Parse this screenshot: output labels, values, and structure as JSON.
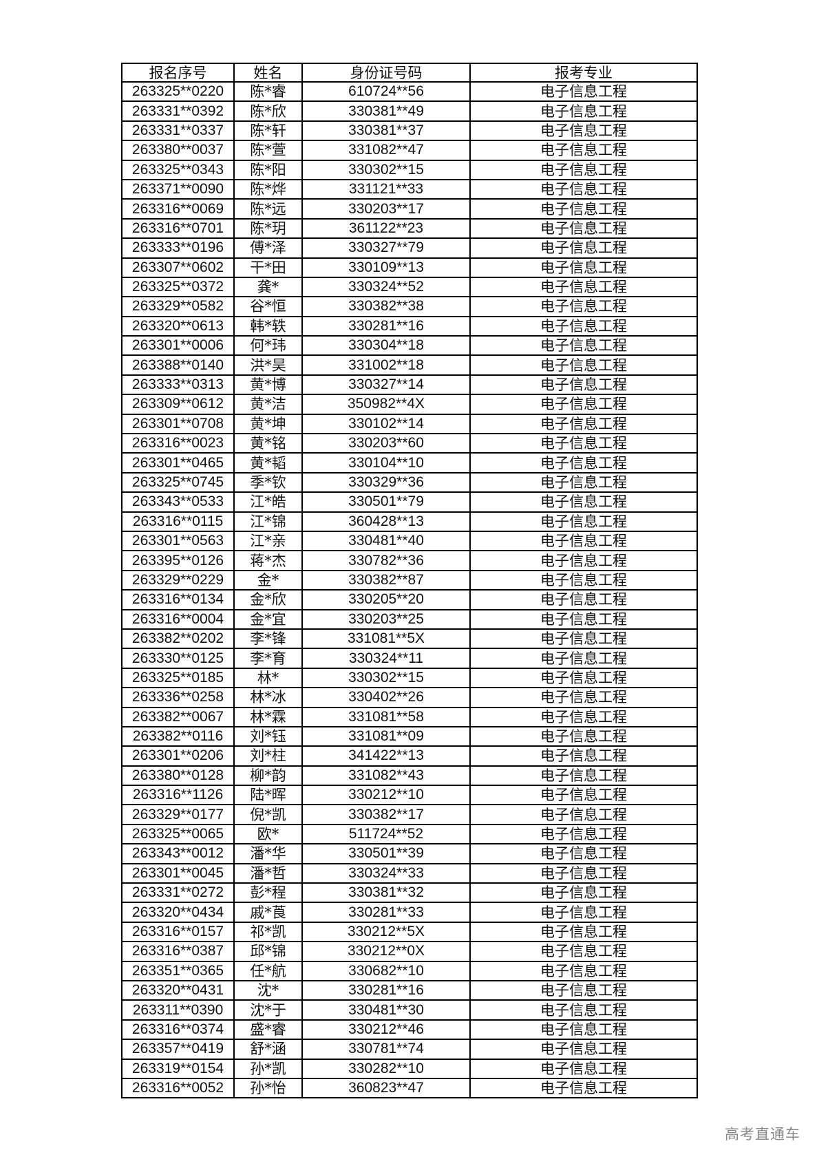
{
  "table": {
    "headers": [
      "报名序号",
      "姓名",
      "身份证号码",
      "报考专业"
    ],
    "rows": [
      [
        "263325**0220",
        "陈*睿",
        "610724**56",
        "电子信息工程"
      ],
      [
        "263331**0392",
        "陈*欣",
        "330381**49",
        "电子信息工程"
      ],
      [
        "263331**0337",
        "陈*轩",
        "330381**37",
        "电子信息工程"
      ],
      [
        "263380**0037",
        "陈*萱",
        "331082**47",
        "电子信息工程"
      ],
      [
        "263325**0343",
        "陈*阳",
        "330302**15",
        "电子信息工程"
      ],
      [
        "263371**0090",
        "陈*烨",
        "331121**33",
        "电子信息工程"
      ],
      [
        "263316**0069",
        "陈*远",
        "330203**17",
        "电子信息工程"
      ],
      [
        "263316**0701",
        "陈*玥",
        "361122**23",
        "电子信息工程"
      ],
      [
        "263333**0196",
        "傅*泽",
        "330327**79",
        "电子信息工程"
      ],
      [
        "263307**0602",
        "干*田",
        "330109**13",
        "电子信息工程"
      ],
      [
        "263325**0372",
        "龚*",
        "330324**52",
        "电子信息工程"
      ],
      [
        "263329**0582",
        "谷*恒",
        "330382**38",
        "电子信息工程"
      ],
      [
        "263320**0613",
        "韩*轶",
        "330281**16",
        "电子信息工程"
      ],
      [
        "263301**0006",
        "何*玮",
        "330304**18",
        "电子信息工程"
      ],
      [
        "263388**0140",
        "洪*昊",
        "331002**18",
        "电子信息工程"
      ],
      [
        "263333**0313",
        "黄*博",
        "330327**14",
        "电子信息工程"
      ],
      [
        "263309**0612",
        "黄*洁",
        "350982**4X",
        "电子信息工程"
      ],
      [
        "263301**0708",
        "黄*坤",
        "330102**14",
        "电子信息工程"
      ],
      [
        "263316**0023",
        "黄*铭",
        "330203**60",
        "电子信息工程"
      ],
      [
        "263301**0465",
        "黄*韬",
        "330104**10",
        "电子信息工程"
      ],
      [
        "263325**0745",
        "季*钦",
        "330329**36",
        "电子信息工程"
      ],
      [
        "263343**0533",
        "江*皓",
        "330501**79",
        "电子信息工程"
      ],
      [
        "263316**0115",
        "江*锦",
        "360428**13",
        "电子信息工程"
      ],
      [
        "263301**0563",
        "江*亲",
        "330481**40",
        "电子信息工程"
      ],
      [
        "263395**0126",
        "蒋*杰",
        "330782**36",
        "电子信息工程"
      ],
      [
        "263329**0229",
        "金*",
        "330382**87",
        "电子信息工程"
      ],
      [
        "263316**0134",
        "金*欣",
        "330205**20",
        "电子信息工程"
      ],
      [
        "263316**0004",
        "金*宜",
        "330203**25",
        "电子信息工程"
      ],
      [
        "263382**0202",
        "李*锋",
        "331081**5X",
        "电子信息工程"
      ],
      [
        "263330**0125",
        "李*育",
        "330324**11",
        "电子信息工程"
      ],
      [
        "263325**0185",
        "林*",
        "330302**15",
        "电子信息工程"
      ],
      [
        "263336**0258",
        "林*冰",
        "330402**26",
        "电子信息工程"
      ],
      [
        "263382**0067",
        "林*霖",
        "331081**58",
        "电子信息工程"
      ],
      [
        "263382**0116",
        "刘*钰",
        "331081**09",
        "电子信息工程"
      ],
      [
        "263301**0206",
        "刘*柱",
        "341422**13",
        "电子信息工程"
      ],
      [
        "263380**0128",
        "柳*韵",
        "331082**43",
        "电子信息工程"
      ],
      [
        "263316**1126",
        "陆*晖",
        "330212**10",
        "电子信息工程"
      ],
      [
        "263329**0177",
        "倪*凯",
        "330382**17",
        "电子信息工程"
      ],
      [
        "263325**0065",
        "欧*",
        "511724**52",
        "电子信息工程"
      ],
      [
        "263343**0012",
        "潘*华",
        "330501**39",
        "电子信息工程"
      ],
      [
        "263301**0045",
        "潘*哲",
        "330324**33",
        "电子信息工程"
      ],
      [
        "263331**0272",
        "彭*程",
        "330381**32",
        "电子信息工程"
      ],
      [
        "263320**0434",
        "戚*莨",
        "330281**33",
        "电子信息工程"
      ],
      [
        "263316**0157",
        "祁*凯",
        "330212**5X",
        "电子信息工程"
      ],
      [
        "263316**0387",
        "邱*锦",
        "330212**0X",
        "电子信息工程"
      ],
      [
        "263351**0365",
        "任*航",
        "330682**10",
        "电子信息工程"
      ],
      [
        "263320**0431",
        "沈*",
        "330281**16",
        "电子信息工程"
      ],
      [
        "263311**0390",
        "沈*于",
        "330481**30",
        "电子信息工程"
      ],
      [
        "263316**0374",
        "盛*睿",
        "330212**46",
        "电子信息工程"
      ],
      [
        "263357**0419",
        "舒*涵",
        "330781**74",
        "电子信息工程"
      ],
      [
        "263319**0154",
        "孙*凯",
        "330282**10",
        "电子信息工程"
      ],
      [
        "263316**0052",
        "孙*怡",
        "360823**47",
        "电子信息工程"
      ]
    ]
  },
  "watermark": "高考直通车"
}
